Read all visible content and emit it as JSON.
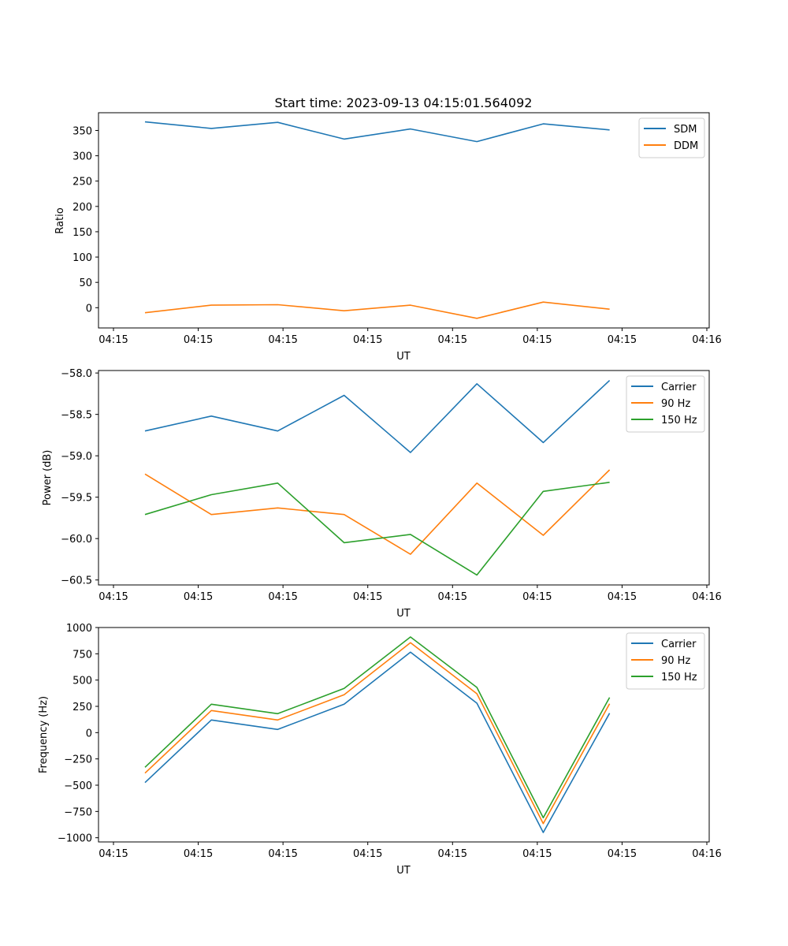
{
  "figure": {
    "title": "Start time: 2023-09-13 04:15:01.564092"
  },
  "chart_data": [
    {
      "type": "line",
      "title": "Start time: 2023-09-13 04:15:01.564092",
      "xlabel": "UT",
      "ylabel": "Ratio",
      "x_tick_labels": [
        "04:15",
        "04:15",
        "04:15",
        "04:15",
        "04:15",
        "04:15",
        "04:15"
      ],
      "x_last_tick_label": "04:16",
      "x_tick_count": 7,
      "x_range": [
        -0.7,
        8.5
      ],
      "x": [
        0,
        1,
        2,
        3,
        4,
        5,
        6,
        7
      ],
      "ylim": [
        -40,
        385
      ],
      "yticks": [
        0,
        50,
        100,
        150,
        200,
        250,
        300,
        350
      ],
      "legend_position": "top-right",
      "series": [
        {
          "name": "SDM",
          "color": "#1f77b4",
          "values": [
            367,
            354,
            366,
            333,
            353,
            328,
            363,
            351
          ]
        },
        {
          "name": "DDM",
          "color": "#ff7f0e",
          "values": [
            -10,
            5,
            6,
            -6,
            5,
            -21,
            11,
            -3
          ]
        }
      ]
    },
    {
      "type": "line",
      "title": "",
      "xlabel": "UT",
      "ylabel": "Power (dB)",
      "x_tick_labels": [
        "04:15",
        "04:15",
        "04:15",
        "04:15",
        "04:15",
        "04:15",
        "04:15"
      ],
      "x_last_tick_label": "04:16",
      "x_tick_count": 7,
      "x_range": [
        -0.7,
        8.5
      ],
      "x": [
        0,
        1,
        2,
        3,
        4,
        5,
        6,
        7
      ],
      "ylim": [
        -60.56,
        -57.97
      ],
      "yticks": [
        -60.5,
        -60.0,
        -59.5,
        -59.0,
        -58.5,
        -58.0
      ],
      "ytick_labels": [
        "−60.5",
        "−60.0",
        "−59.5",
        "−59.0",
        "−58.5",
        "−58.0"
      ],
      "legend_position": "top-right",
      "series": [
        {
          "name": "Carrier",
          "color": "#1f77b4",
          "values": [
            -58.7,
            -58.52,
            -58.7,
            -58.27,
            -58.96,
            -58.13,
            -58.84,
            -58.09
          ]
        },
        {
          "name": "90 Hz",
          "color": "#ff7f0e",
          "values": [
            -59.22,
            -59.71,
            -59.63,
            -59.71,
            -60.19,
            -59.33,
            -59.96,
            -59.17
          ]
        },
        {
          "name": "150 Hz",
          "color": "#2ca02c",
          "values": [
            -59.71,
            -59.47,
            -59.33,
            -60.05,
            -59.95,
            -60.44,
            -59.43,
            -59.32
          ]
        }
      ]
    },
    {
      "type": "line",
      "title": "",
      "xlabel": "UT",
      "ylabel": "Frequency (Hz)",
      "x_tick_labels": [
        "04:15",
        "04:15",
        "04:15",
        "04:15",
        "04:15",
        "04:15",
        "04:15"
      ],
      "x_last_tick_label": "04:16",
      "x_tick_count": 7,
      "x_range": [
        -0.7,
        8.5
      ],
      "x": [
        0,
        1,
        2,
        3,
        4,
        5,
        6,
        7
      ],
      "ylim": [
        -1040,
        1000
      ],
      "yticks": [
        -1000,
        -750,
        -500,
        -250,
        0,
        250,
        500,
        750,
        1000
      ],
      "ytick_labels": [
        "−1000",
        "−750",
        "−500",
        "−250",
        "0",
        "250",
        "500",
        "750",
        "1000"
      ],
      "legend_position": "top-right",
      "series": [
        {
          "name": "Carrier",
          "color": "#1f77b4",
          "values": [
            -475,
            120,
            30,
            270,
            765,
            280,
            -950,
            185
          ]
        },
        {
          "name": "90 Hz",
          "color": "#ff7f0e",
          "values": [
            -385,
            210,
            120,
            360,
            855,
            370,
            -865,
            275
          ]
        },
        {
          "name": "150 Hz",
          "color": "#2ca02c",
          "values": [
            -330,
            270,
            180,
            420,
            910,
            430,
            -810,
            335
          ]
        }
      ]
    }
  ]
}
